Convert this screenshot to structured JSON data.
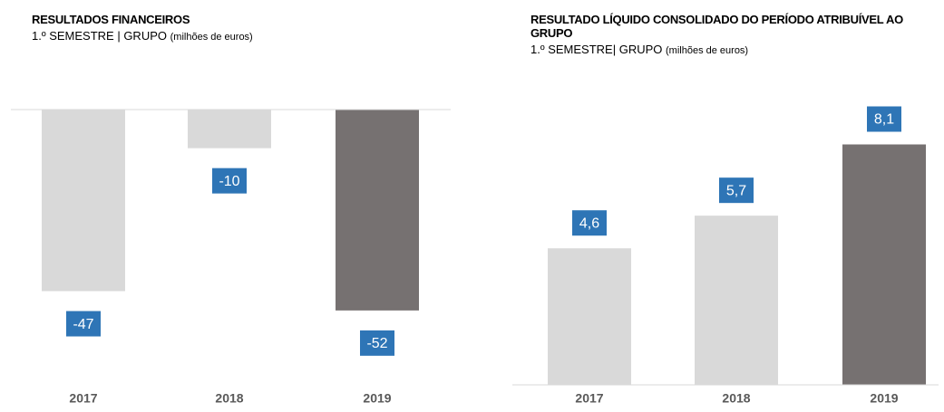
{
  "chart_data": [
    {
      "type": "bar",
      "title": "RESULTADOS FINANCEIROS",
      "subtitle": "1.º SEMESTRE | GRUPO",
      "unit_label": "(milhões de euros)",
      "categories": [
        "2017",
        "2018",
        "2019"
      ],
      "values": [
        -47,
        -10,
        -52
      ],
      "colors": [
        "#d9d9d9",
        "#d9d9d9",
        "#767171"
      ],
      "label_color": "#2e75b6",
      "ylim": [
        -60,
        0
      ]
    },
    {
      "type": "bar",
      "title": "RESULTADO LÍQUIDO CONSOLIDADO DO PERÍODO ATRIBUÍVEL AO GRUPO",
      "subtitle": "1.º SEMESTRE| GRUPO",
      "unit_label": "(milhões de euros)",
      "categories": [
        "2017",
        "2018",
        "2019"
      ],
      "values": [
        4.6,
        5.7,
        8.1
      ],
      "value_labels": [
        "4,6",
        "5,7",
        "8,1"
      ],
      "colors": [
        "#d9d9d9",
        "#d9d9d9",
        "#767171"
      ],
      "label_color": "#2e75b6",
      "ylim": [
        0,
        9
      ]
    }
  ]
}
